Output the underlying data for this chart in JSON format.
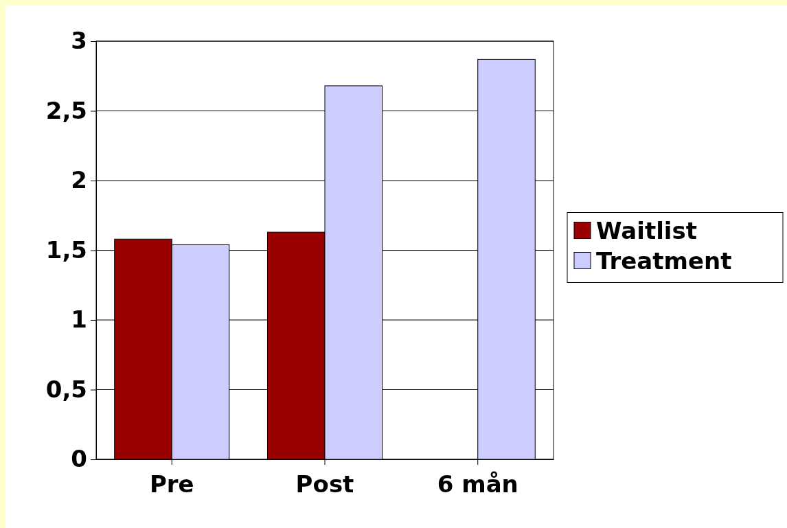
{
  "chart_data": {
    "type": "bar",
    "categories": [
      "Pre",
      "Post",
      "6 mån"
    ],
    "series": [
      {
        "name": "Waitlist",
        "color": "#990000",
        "values": [
          1.58,
          1.63,
          null
        ]
      },
      {
        "name": "Treatment",
        "color": "#ccccff",
        "values": [
          1.54,
          2.68,
          2.87
        ]
      }
    ],
    "ylim": [
      0,
      3
    ],
    "yticks": [
      0,
      {
        "value": 0.5,
        "label": "0,5"
      },
      1,
      {
        "value": 1.5,
        "label": "1,5"
      },
      2,
      {
        "value": 2.5,
        "label": "2,5"
      },
      3
    ],
    "grid": "y",
    "legend": "right"
  }
}
